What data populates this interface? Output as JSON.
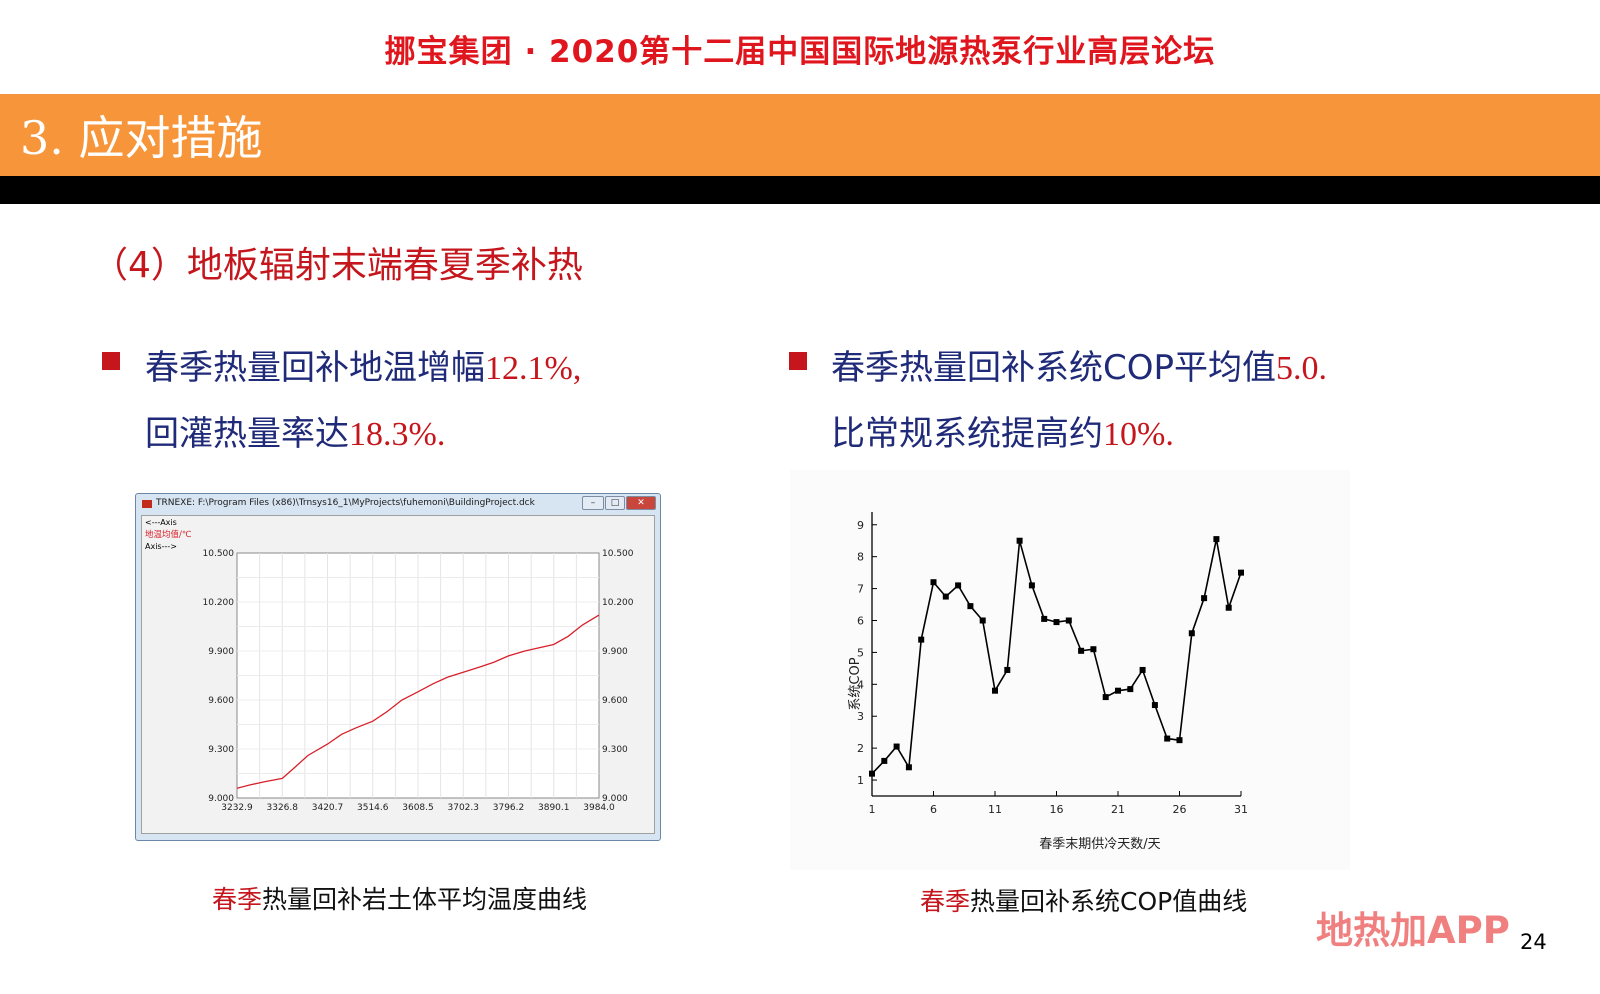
{
  "header": {
    "title": "挪宝集团 · 2020第十二届中国国际地源热泵行业高层论坛"
  },
  "section": {
    "title": "3. 应对措施"
  },
  "subtitle": "（4）地板辐射末端春夏季补热",
  "left_bullet": {
    "line1_text": "春季热量回补地温增幅",
    "line1_value": "12.1%,",
    "line2_text": "回灌热量率达",
    "line2_value": "18.3%."
  },
  "right_bullet": {
    "line1_text": "春季热量回补系统COP平均值",
    "line1_value": "5.0.",
    "line2_text": "比常规系统提高约",
    "line2_value": "10%."
  },
  "window": {
    "title": "TRNEXE: F:\\Program Files (x86)\\Trnsys16_1\\MyProjects\\fuhemoni\\BuildingProject.dck",
    "left_axis_label": "<---Axis",
    "series_label": "地温均值/℃",
    "right_axis_label": "Axis--->"
  },
  "left_caption": {
    "red": "春季",
    "rest": "热量回补岩土体平均温度曲线"
  },
  "right_caption": {
    "red": "春季",
    "rest": "热量回补系统COP值曲线"
  },
  "watermark": "地热加APP",
  "page_number": "24",
  "chart_data": [
    {
      "type": "line",
      "title": "",
      "series": [
        {
          "name": "地温均值/℃",
          "color": "#d8202a"
        }
      ],
      "x_tick_labels": [
        "3232.9",
        "3326.8",
        "3420.7",
        "3514.6",
        "3608.5",
        "3702.3",
        "3796.2",
        "3890.1",
        "3984.0"
      ],
      "y_tick_labels": [
        "10.500",
        "10.200",
        "9.900",
        "9.600",
        "9.300",
        "9.000"
      ],
      "xlim": [
        3232.9,
        3984.0
      ],
      "ylim": [
        9.0,
        10.5
      ],
      "grid": true,
      "x": [
        3232.9,
        3260,
        3290,
        3326.8,
        3350,
        3380,
        3420.7,
        3450,
        3480,
        3514.6,
        3545,
        3575,
        3608.5,
        3640,
        3670,
        3702.3,
        3735,
        3765,
        3796.2,
        3830,
        3860,
        3890.1,
        3920,
        3950,
        3984.0
      ],
      "values": [
        9.06,
        9.08,
        9.1,
        9.12,
        9.18,
        9.26,
        9.33,
        9.39,
        9.43,
        9.47,
        9.53,
        9.6,
        9.65,
        9.7,
        9.74,
        9.77,
        9.8,
        9.83,
        9.87,
        9.9,
        9.92,
        9.94,
        9.99,
        10.06,
        10.12
      ]
    },
    {
      "type": "line",
      "title": "",
      "xlabel": "春季末期供冷天数/天",
      "ylabel": "系统COP",
      "x_ticks": [
        1,
        6,
        11,
        16,
        21,
        26,
        31
      ],
      "y_ticks": [
        1,
        2,
        3,
        4,
        5,
        6,
        7,
        8,
        9
      ],
      "xlim": [
        1,
        31
      ],
      "ylim": [
        0.5,
        9.4
      ],
      "grid": false,
      "series": [
        {
          "name": "",
          "color": "#000000",
          "marker": "square"
        }
      ],
      "x": [
        1,
        2,
        3,
        4,
        5,
        6,
        7,
        8,
        9,
        10,
        11,
        12,
        13,
        14,
        15,
        16,
        17,
        18,
        19,
        20,
        21,
        22,
        23,
        24,
        25,
        26,
        27,
        28,
        29,
        30,
        31
      ],
      "values": [
        1.2,
        1.6,
        2.05,
        1.4,
        5.4,
        7.2,
        6.75,
        7.1,
        6.45,
        6.0,
        3.8,
        4.45,
        8.5,
        7.1,
        6.05,
        5.95,
        6.0,
        5.05,
        5.1,
        3.6,
        3.8,
        3.85,
        4.45,
        3.35,
        2.3,
        2.25,
        5.6,
        6.7,
        8.55,
        6.4,
        7.5
      ]
    }
  ]
}
